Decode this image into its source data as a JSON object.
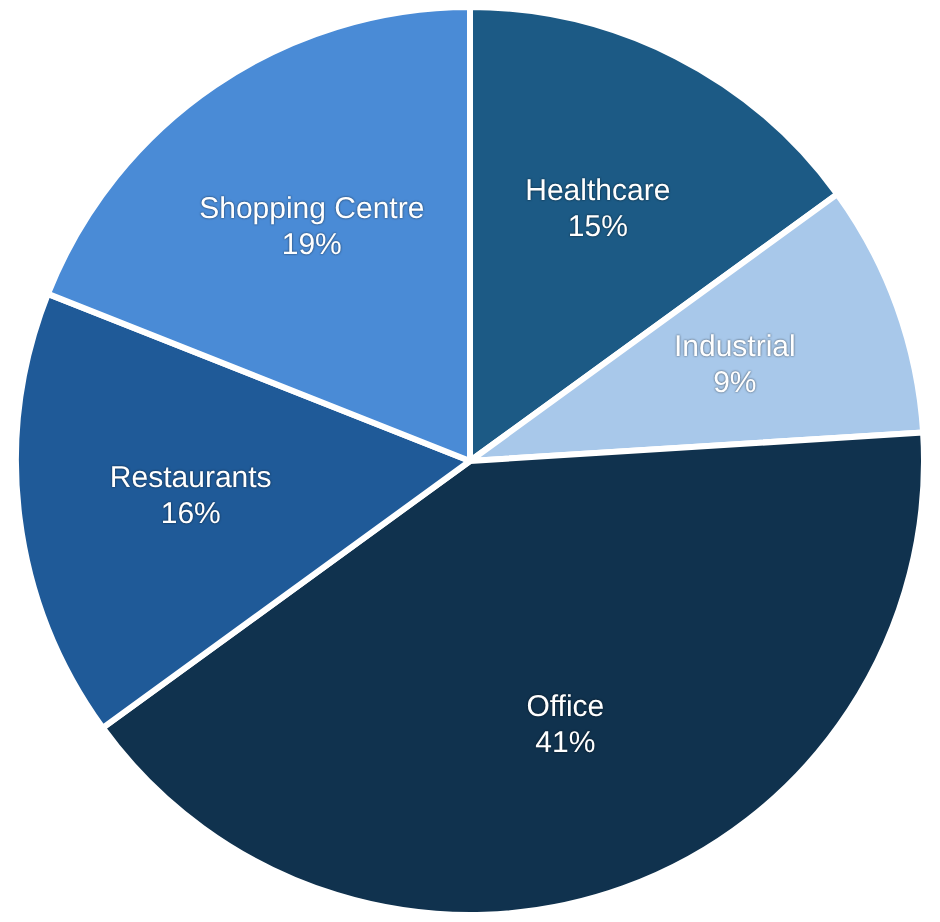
{
  "chart_data": {
    "type": "pie",
    "categories": [
      "Healthcare",
      "Industrial",
      "Office",
      "Restaurants",
      "Shopping Centre"
    ],
    "values": [
      15,
      9,
      41,
      16,
      19
    ],
    "value_labels": [
      "15%",
      "9%",
      "41%",
      "16%",
      "19%"
    ],
    "colors": [
      "#1c5a85",
      "#a8c8ea",
      "#10324e",
      "#1f5a98",
      "#4a8bd6"
    ],
    "legend": false
  }
}
